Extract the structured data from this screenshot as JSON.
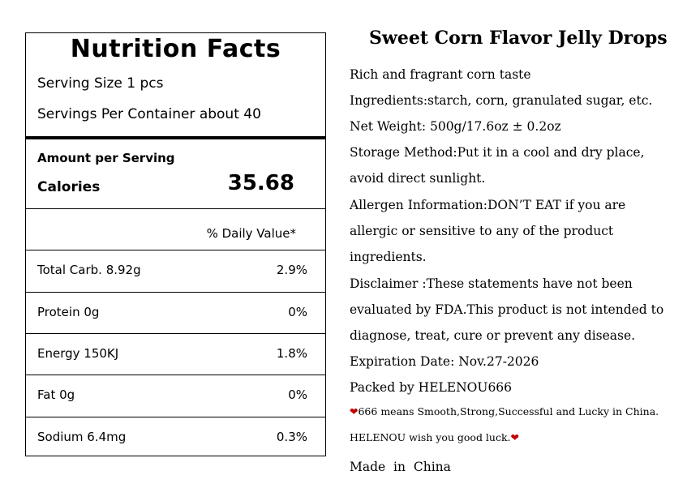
{
  "nutrition": {
    "title": "Nutrition Facts",
    "serving_size": "Serving Size 1 pcs",
    "servings_per_container": "Servings Per Container about 40",
    "amount_per_serving": "Amount per Serving",
    "calories_label": "Calories",
    "calories_value": "35.68",
    "daily_value_header": "% Daily Value*",
    "rows": [
      {
        "label": "Total Carb. 8.92g",
        "percent": "2.9%"
      },
      {
        "label": "Protein 0g",
        "percent": "0%"
      },
      {
        "label": "Energy 150KJ",
        "percent": "1.8%"
      },
      {
        "label": "Fat 0g",
        "percent": "0%"
      },
      {
        "label": "Sodium 6.4mg",
        "percent": "0.3%"
      }
    ]
  },
  "info": {
    "title": "Sweet Corn Flavor Jelly Drops",
    "lines": [
      "Rich and fragrant corn taste",
      "Ingredients:starch, corn, granulated sugar, etc.",
      "Net Weight: 500g/17.6oz ± 0.2oz",
      "Storage Method:Put it in a cool and dry place,",
      "avoid direct sunlight.",
      "Allergen Information:DON’T EAT if you are",
      "allergic or sensitive to any of the product",
      "ingredients.",
      "Disclaimer :These statements have not been",
      "evaluated by FDA.This product is not intended to",
      "diagnose, treat, cure or prevent any disease.",
      "Expiration Date: Nov.27-2026",
      "Packed by HELENOU666"
    ],
    "note_1": "666 means Smooth,Strong,Successful and Lucky in China.",
    "note_2": "HELENOU wish you good luck.",
    "made_in": "Made  in  China",
    "heart_color": "#c00000",
    "heart_icon": "heart-icon"
  }
}
